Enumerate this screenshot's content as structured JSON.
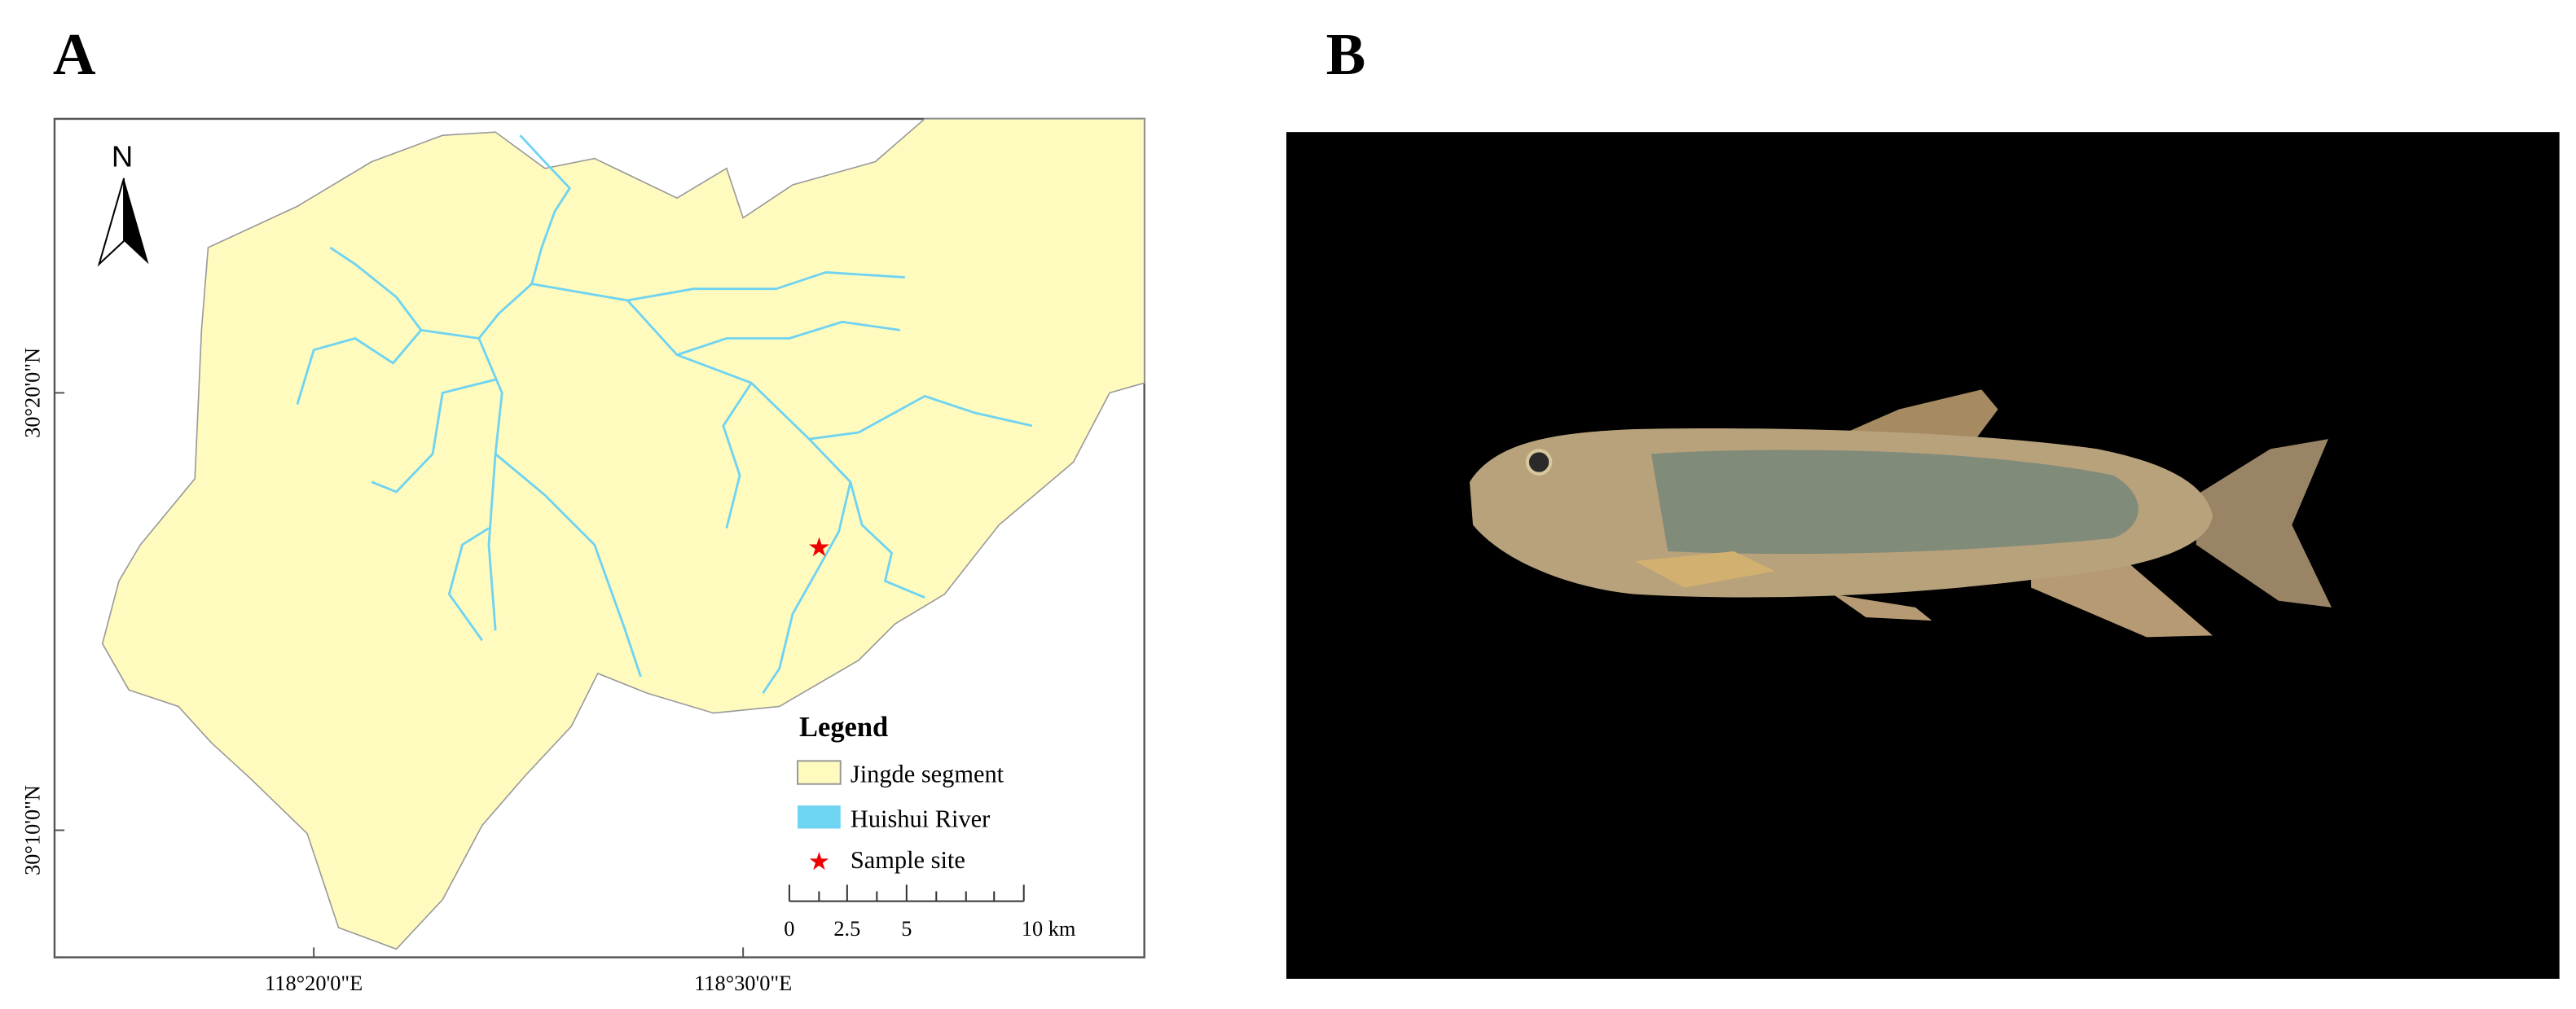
{
  "panels": {
    "a": "A",
    "b": "B"
  },
  "map": {
    "north": "N",
    "lat_labels": [
      "30°20'0\"N",
      "30°10'0\"N"
    ],
    "lon_labels": [
      "118°20'0\"E",
      "118°30'0\"E"
    ],
    "legend": {
      "title": "Legend",
      "items": [
        "Jingde segment",
        "Huishui River",
        "Sample site"
      ]
    },
    "scale_bar": [
      "0",
      "2.5",
      "5",
      "10 km"
    ]
  }
}
